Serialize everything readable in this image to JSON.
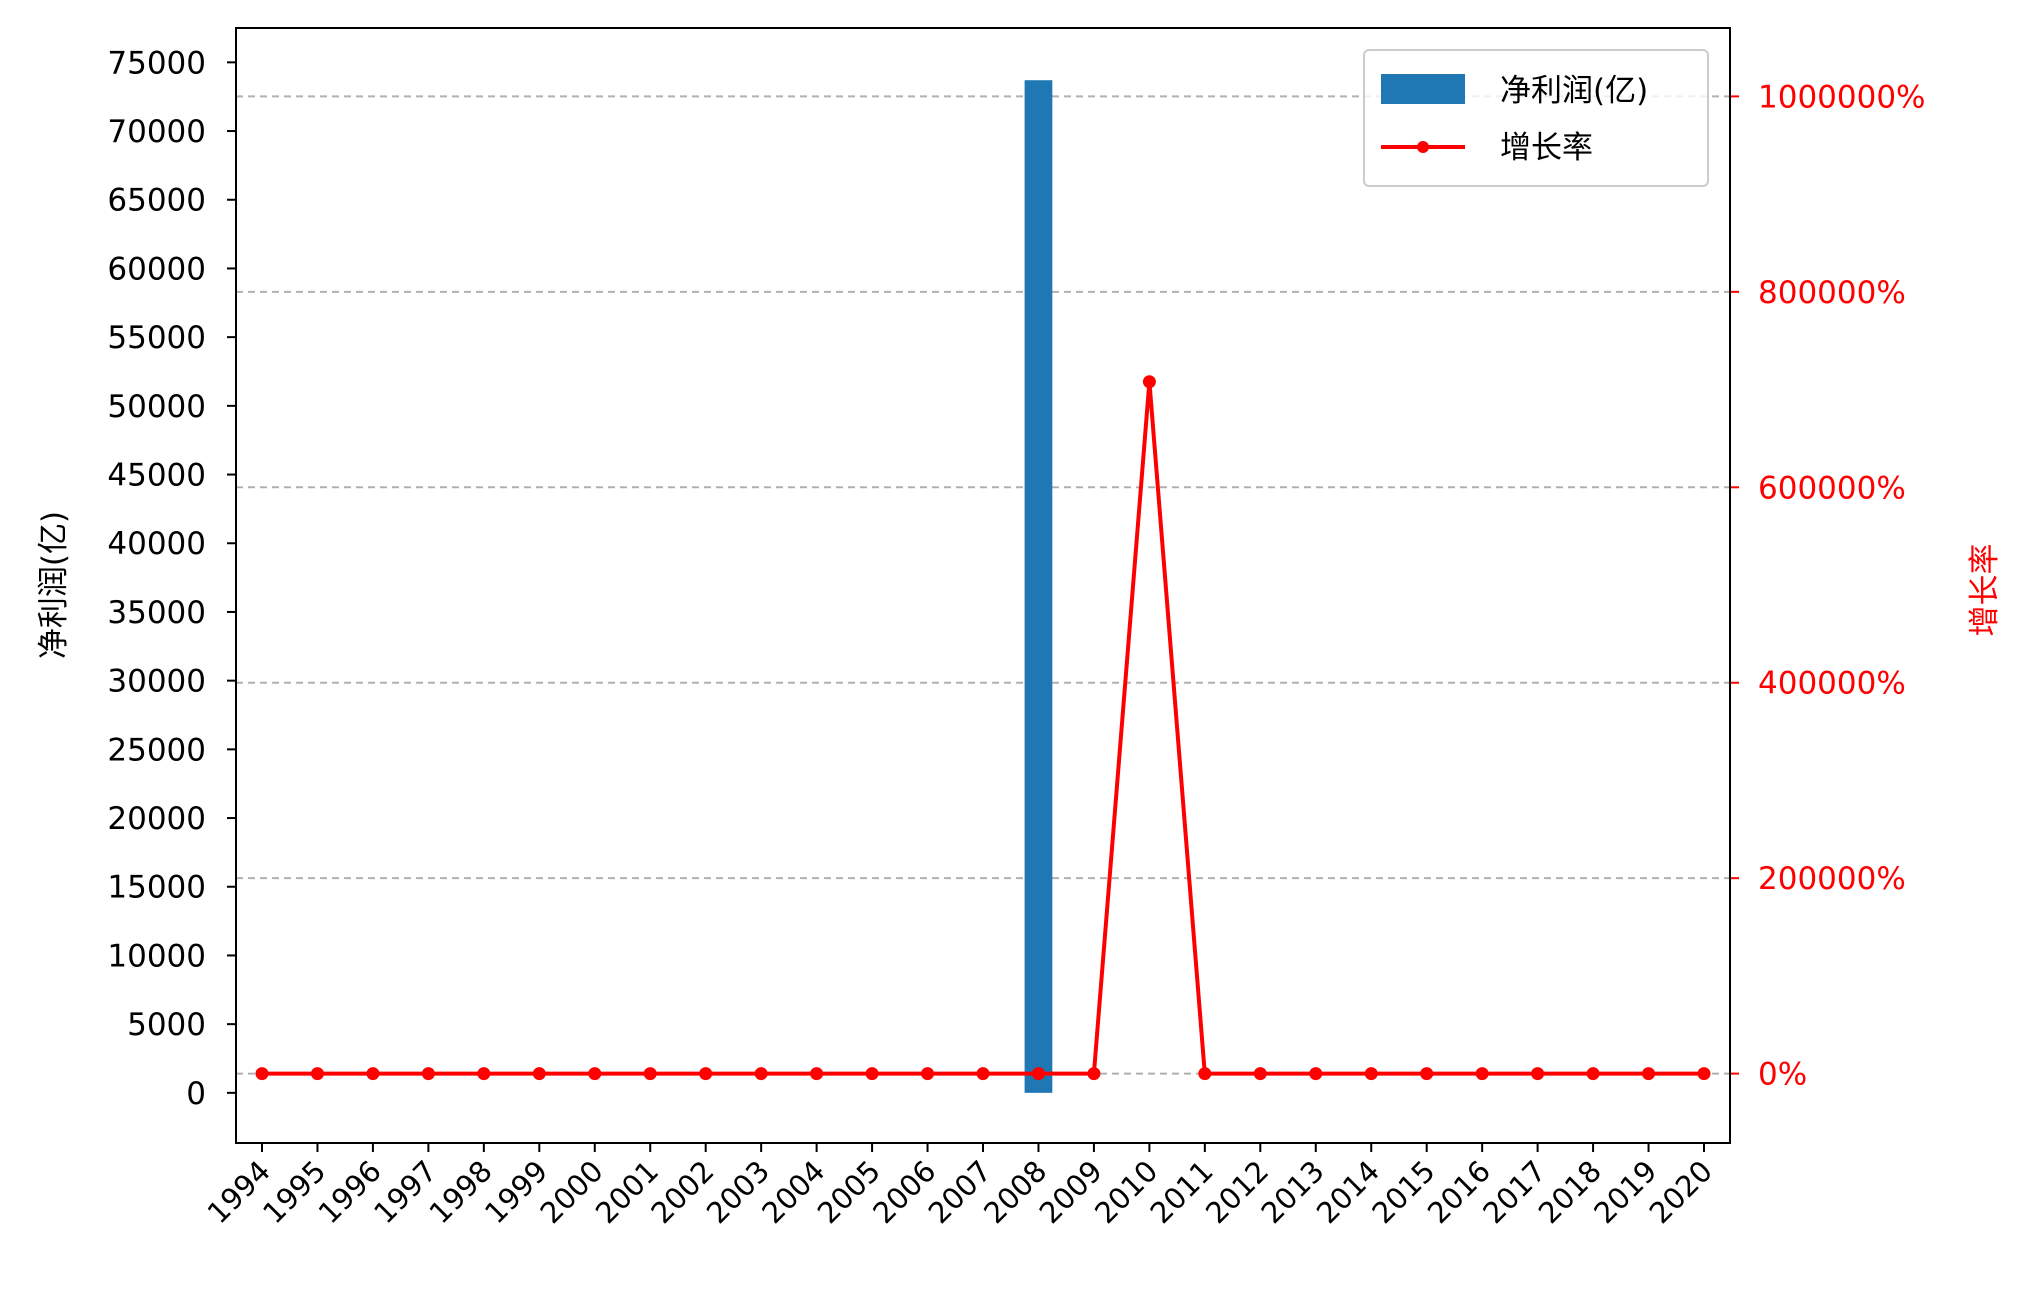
{
  "chart_data": {
    "type": "bar",
    "x": [
      "1994",
      "1995",
      "1996",
      "1997",
      "1998",
      "1999",
      "2000",
      "2001",
      "2002",
      "2003",
      "2004",
      "2005",
      "2006",
      "2007",
      "2008",
      "2009",
      "2010",
      "2011",
      "2012",
      "2013",
      "2014",
      "2015",
      "2016",
      "2017",
      "2018",
      "2019",
      "2020"
    ],
    "series": [
      {
        "name": "净利润(亿)",
        "type": "bar",
        "axis": "left",
        "color": "#1f77b4",
        "values": [
          0,
          0,
          0,
          0,
          0,
          0,
          0,
          0,
          0,
          0,
          0,
          0,
          0,
          0,
          73700,
          0,
          0,
          0,
          0,
          0,
          0,
          0,
          0,
          0,
          0,
          0,
          0
        ]
      },
      {
        "name": "增长率",
        "type": "line",
        "axis": "right",
        "color": "#ff0000",
        "marker": "circle",
        "values_percent": [
          0,
          0,
          0,
          0,
          0,
          0,
          0,
          0,
          0,
          0,
          0,
          0,
          0,
          0,
          0,
          0,
          708000,
          0,
          0,
          0,
          0,
          0,
          0,
          0,
          0,
          0,
          0
        ]
      }
    ],
    "ylabel_left": "净利润(亿)",
    "ylabel_right": "增长率",
    "left_ticks": [
      "0",
      "5000",
      "10000",
      "15000",
      "20000",
      "25000",
      "30000",
      "35000",
      "40000",
      "45000",
      "50000",
      "55000",
      "60000",
      "65000",
      "70000",
      "75000"
    ],
    "right_ticks": [
      "0%",
      "200000%",
      "400000%",
      "600000%",
      "800000%",
      "1000000%"
    ],
    "ylim_left": [
      -3650,
      77500
    ],
    "ylim_right": [
      -71000,
      1070000
    ],
    "grid": "horizontal dashed on right-axis ticks",
    "legend_position": "top-right",
    "xtick_rotation": 45
  }
}
